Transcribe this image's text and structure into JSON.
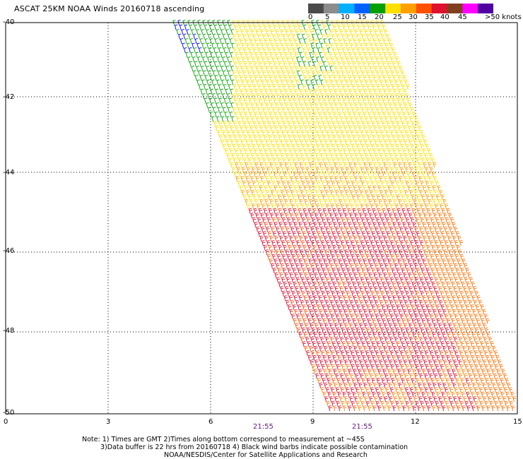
{
  "title": "ASCAT 25KM NOAA Winds 20160718 ascending",
  "legend": {
    "labels": [
      "0",
      "5",
      "10",
      "15",
      "20",
      "25",
      "30",
      "35",
      "40",
      "45",
      ">50 knots"
    ],
    "colors": [
      "#4a4a4a",
      "#8c8c8c",
      "#00b0ff",
      "#0060ff",
      "#00a000",
      "#ffe000",
      "#ffa000",
      "#ff5000",
      "#e01030",
      "#804020",
      "#ff00ff",
      "#5000a0"
    ]
  },
  "axes": {
    "x_ticks": [
      "0",
      "3",
      "6",
      "9",
      "12",
      "15"
    ],
    "y_ticks": [
      "-40",
      "-42",
      "-44",
      "-46",
      "-48",
      "-50"
    ]
  },
  "times": [
    "21:55",
    "21:55"
  ],
  "notes": [
    "Note: 1) Times are GMT 2)Times along bottom correspond to measurement at ~45S",
    "3)Data buffer is 22 hrs from 20160718 4) Black wind barbs indicate possible contamination",
    "NOAA/NESDIS/Center for Satellite Applications and Research"
  ]
}
